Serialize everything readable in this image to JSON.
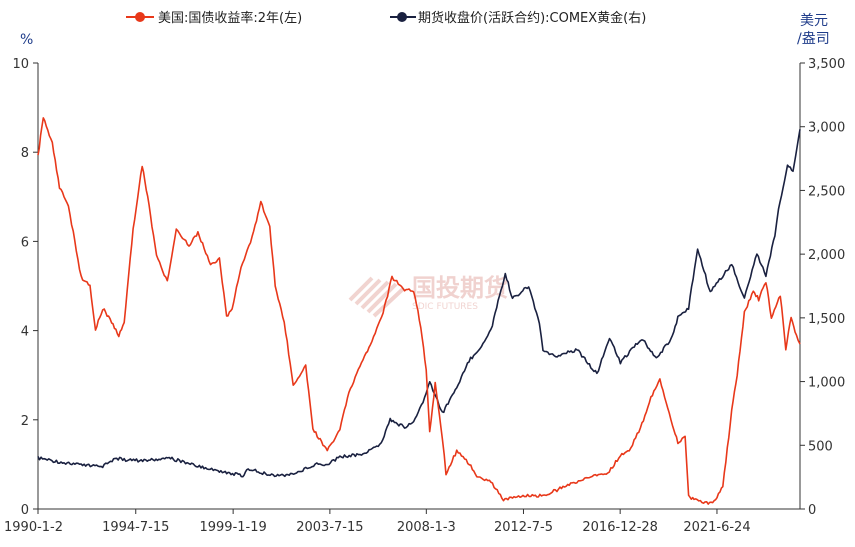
{
  "chart_data": {
    "type": "line",
    "legend": {
      "position": "top",
      "items": [
        {
          "label": "美国:国债收益率:2年(左)",
          "color": "#e8381a",
          "axis": "left"
        },
        {
          "label": "期货收盘价(活跃合约):COMEX黄金(右)",
          "color": "#1a2140",
          "axis": "right"
        }
      ]
    },
    "left_axis": {
      "unit": "%",
      "range": [
        0,
        10
      ],
      "ticks": [
        "0",
        "2",
        "4",
        "6",
        "8",
        "10"
      ]
    },
    "right_axis": {
      "unit_line1": "美元",
      "unit_line2": "/盎司",
      "range": [
        0,
        3500
      ],
      "ticks": [
        "0",
        "500",
        "1,000",
        "1,500",
        "2,000",
        "2,500",
        "3,000",
        "3,500"
      ]
    },
    "x_axis": {
      "range": [
        "1990-01-02",
        "2025-04-30"
      ],
      "tick_labels": [
        "1990-1-2",
        "1994-7-15",
        "1999-1-19",
        "2003-7-15",
        "2008-1-3",
        "2012-7-5",
        "2016-12-28",
        "2021-6-24"
      ],
      "tick_dates": [
        "1990-01-02",
        "1994-07-15",
        "1999-01-19",
        "2003-07-15",
        "2008-01-03",
        "2012-07-05",
        "2016-12-28",
        "2021-06-24"
      ]
    },
    "series": [
      {
        "name": "美国:国债收益率:2年(左)",
        "axis": "left",
        "color": "#e8381a",
        "x": [
          "1990-01-02",
          "1990-04-01",
          "1990-09-01",
          "1991-01-01",
          "1991-06-01",
          "1992-01-01",
          "1992-06-01",
          "1992-09-01",
          "1993-01-01",
          "1993-06-01",
          "1993-10-01",
          "1994-01-01",
          "1994-06-01",
          "1994-11-01",
          "1995-02-01",
          "1995-07-01",
          "1996-01-01",
          "1996-06-01",
          "1997-01-01",
          "1997-06-01",
          "1998-01-01",
          "1998-06-01",
          "1998-10-01",
          "1999-01-01",
          "1999-06-01",
          "2000-01-01",
          "2000-05-01",
          "2000-10-01",
          "2001-01-01",
          "2001-06-01",
          "2001-11-01",
          "2002-06-01",
          "2002-10-01",
          "2003-06-01",
          "2004-01-01",
          "2004-06-01",
          "2005-01-01",
          "2005-06-01",
          "2006-01-01",
          "2006-06-01",
          "2007-01-01",
          "2007-06-01",
          "2007-10-01",
          "2008-01-01",
          "2008-03-01",
          "2008-06-01",
          "2008-10-01",
          "2008-12-01",
          "2009-06-01",
          "2010-01-01",
          "2010-06-01",
          "2011-01-01",
          "2011-08-01",
          "2012-06-01",
          "2013-06-01",
          "2014-06-01",
          "2015-06-01",
          "2016-06-01",
          "2017-01-01",
          "2017-06-01",
          "2018-01-01",
          "2018-06-01",
          "2018-11-01",
          "2019-06-01",
          "2019-09-01",
          "2020-01-01",
          "2020-03-01",
          "2020-06-01",
          "2021-01-01",
          "2021-06-01",
          "2021-10-01",
          "2022-03-01",
          "2022-06-01",
          "2022-10-01",
          "2023-03-01",
          "2023-06-01",
          "2023-10-01",
          "2024-01-01",
          "2024-06-01",
          "2024-09-01",
          "2024-12-01",
          "2025-03-01",
          "2025-04-30"
        ],
        "y": [
          7.9,
          8.8,
          8.2,
          7.2,
          6.8,
          5.2,
          5.0,
          4.0,
          4.5,
          4.2,
          3.9,
          4.2,
          6.3,
          7.7,
          7.0,
          5.7,
          5.1,
          6.3,
          5.9,
          6.2,
          5.5,
          5.6,
          4.3,
          4.5,
          5.4,
          6.2,
          6.9,
          6.3,
          5.0,
          4.2,
          2.8,
          3.2,
          1.8,
          1.3,
          1.8,
          2.6,
          3.3,
          3.7,
          4.4,
          5.2,
          4.9,
          4.9,
          4.1,
          3.1,
          1.7,
          2.8,
          1.6,
          0.8,
          1.3,
          1.0,
          0.7,
          0.6,
          0.2,
          0.3,
          0.3,
          0.5,
          0.7,
          0.8,
          1.2,
          1.3,
          1.9,
          2.5,
          2.9,
          1.9,
          1.5,
          1.6,
          0.3,
          0.2,
          0.13,
          0.2,
          0.5,
          2.2,
          3.0,
          4.4,
          4.9,
          4.7,
          5.1,
          4.3,
          4.8,
          3.6,
          4.3,
          3.9,
          3.7
        ]
      },
      {
        "name": "期货收盘价(活跃合约):COMEX黄金(右)",
        "axis": "right",
        "color": "#1a2140",
        "x": [
          "1990-01-02",
          "1991-01-01",
          "1992-01-01",
          "1993-01-01",
          "1993-08-01",
          "1994-01-01",
          "1995-01-01",
          "1996-02-01",
          "1996-06-01",
          "1997-06-01",
          "1998-06-01",
          "1999-07-01",
          "1999-10-01",
          "2000-06-01",
          "2001-04-01",
          "2001-12-01",
          "2002-06-01",
          "2003-01-01",
          "2003-06-01",
          "2004-01-01",
          "2005-01-01",
          "2005-12-01",
          "2006-05-01",
          "2007-01-01",
          "2007-06-01",
          "2008-01-01",
          "2008-03-01",
          "2008-10-01",
          "2009-06-01",
          "2009-12-01",
          "2010-06-01",
          "2011-01-01",
          "2011-09-01",
          "2012-01-01",
          "2012-10-01",
          "2013-04-01",
          "2013-06-01",
          "2014-01-01",
          "2015-01-01",
          "2015-12-01",
          "2016-07-01",
          "2017-01-01",
          "2018-01-01",
          "2018-09-01",
          "2019-06-01",
          "2019-09-01",
          "2020-03-01",
          "2020-08-01",
          "2021-03-01",
          "2022-03-01",
          "2022-10-01",
          "2023-05-01",
          "2023-10-01",
          "2024-03-01",
          "2024-05-01",
          "2024-10-01",
          "2025-01-01",
          "2025-04-30"
        ],
        "y": [
          400,
          370,
          345,
          330,
          400,
          385,
          380,
          400,
          385,
          340,
          300,
          260,
          320,
          280,
          260,
          280,
          320,
          360,
          350,
          410,
          430,
          510,
          700,
          640,
          680,
          900,
          1000,
          750,
          950,
          1150,
          1250,
          1400,
          1850,
          1650,
          1750,
          1450,
          1250,
          1200,
          1250,
          1060,
          1340,
          1150,
          1340,
          1180,
          1350,
          1500,
          1580,
          2050,
          1700,
          1920,
          1650,
          2000,
          1830,
          2150,
          2350,
          2700,
          2650,
          2980
        ]
      }
    ]
  },
  "watermark": {
    "text_main": "国投期货",
    "text_sub": "SDIC FUTURES"
  }
}
